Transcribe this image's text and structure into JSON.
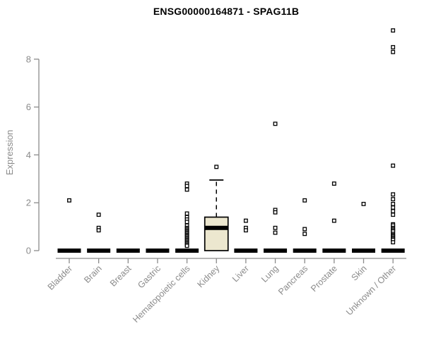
{
  "chart_data": {
    "type": "boxplot",
    "title": "ENSG00000164871 - SPAG11B",
    "ylabel": "Expression",
    "xlabel": "",
    "ylim": [
      0,
      9.3
    ],
    "yticks": [
      0,
      2,
      4,
      6,
      8
    ],
    "grid": false,
    "legend": "none",
    "marker": "open-square",
    "colors": {
      "box_fill": "#ECE7CF",
      "box_stroke": "#000000",
      "median": "#000000",
      "marker_fill": "#FFFFFF",
      "marker_stroke": "#000000",
      "axis": "#8B8B8B",
      "tick_label": "#8B8B8B",
      "title": "#000000"
    },
    "categories": [
      "Bladder",
      "Brain",
      "Breast",
      "Gastric",
      "Hematopoietic cells",
      "Kidney",
      "Liver",
      "Lung",
      "Pancreas",
      "Prostate",
      "Skin",
      "Unknown / Other"
    ],
    "series": [
      {
        "name": "Bladder",
        "q1": 0,
        "median": 0,
        "q3": 0,
        "whisker_low": 0,
        "whisker_high": 0,
        "outliers": [
          2.1
        ]
      },
      {
        "name": "Brain",
        "q1": 0,
        "median": 0,
        "q3": 0,
        "whisker_low": 0,
        "whisker_high": 0,
        "outliers": [
          1.5,
          0.95,
          0.85
        ]
      },
      {
        "name": "Breast",
        "q1": 0,
        "median": 0,
        "q3": 0,
        "whisker_low": 0,
        "whisker_high": 0,
        "outliers": []
      },
      {
        "name": "Gastric",
        "q1": 0,
        "median": 0,
        "q3": 0,
        "whisker_low": 0,
        "whisker_high": 0,
        "outliers": []
      },
      {
        "name": "Hematopoietic cells",
        "q1": 0,
        "median": 0,
        "q3": 0,
        "whisker_low": 0,
        "whisker_high": 0,
        "outliers": [
          2.8,
          2.7,
          2.55,
          1.55,
          1.4,
          1.3,
          1.2,
          1.05,
          0.95,
          0.9,
          0.85,
          0.8,
          0.75,
          0.7,
          0.65,
          0.6,
          0.55,
          0.5,
          0.45,
          0.4,
          0.35,
          0.3,
          0.25,
          0.2
        ],
        "note": ""
      },
      {
        "name": "Kidney",
        "q1": 0,
        "median": 0.95,
        "q3": 1.4,
        "whisker_low": 0,
        "whisker_high": 2.95,
        "outliers": [
          3.5
        ]
      },
      {
        "name": "Liver",
        "q1": 0,
        "median": 0,
        "q3": 0,
        "whisker_low": 0,
        "whisker_high": 0,
        "outliers": [
          1.25,
          0.95,
          0.85
        ]
      },
      {
        "name": "Lung",
        "q1": 0,
        "median": 0,
        "q3": 0,
        "whisker_low": 0,
        "whisker_high": 0,
        "outliers": [
          5.3,
          1.7,
          1.6,
          0.95,
          0.75
        ]
      },
      {
        "name": "Pancreas",
        "q1": 0,
        "median": 0,
        "q3": 0,
        "whisker_low": 0,
        "whisker_high": 0,
        "outliers": [
          2.1,
          0.9,
          0.7
        ]
      },
      {
        "name": "Prostate",
        "q1": 0,
        "median": 0,
        "q3": 0,
        "whisker_low": 0,
        "whisker_high": 0,
        "outliers": [
          2.8,
          1.25
        ]
      },
      {
        "name": "Skin",
        "q1": 0,
        "median": 0,
        "q3": 0,
        "whisker_low": 0,
        "whisker_high": 0,
        "outliers": [
          1.95
        ]
      },
      {
        "name": "Unknown / Other",
        "q1": 0,
        "median": 0,
        "q3": 0,
        "whisker_low": 0,
        "whisker_high": 0,
        "outliers": [
          9.2,
          8.5,
          8.3,
          3.55,
          2.35,
          2.15,
          1.95,
          1.8,
          1.65,
          1.5,
          1.1,
          1.05,
          0.95,
          0.9,
          0.85,
          0.8,
          0.7,
          0.65,
          0.6,
          0.55,
          0.5,
          0.45,
          0.35
        ]
      }
    ]
  }
}
